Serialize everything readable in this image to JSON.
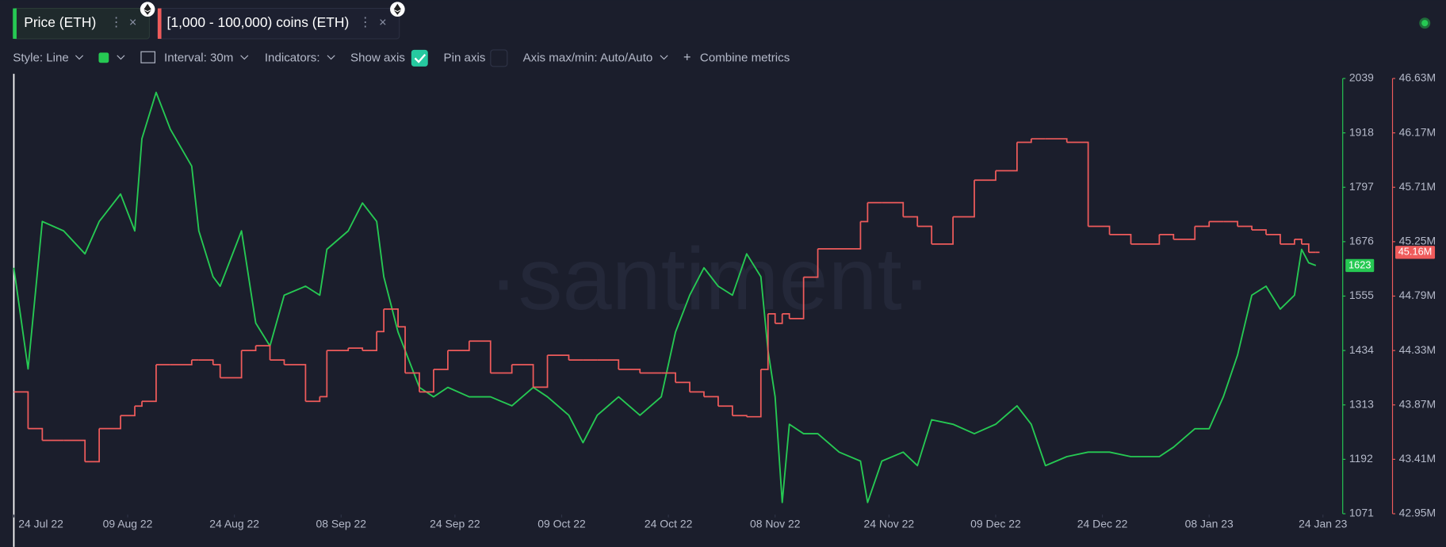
{
  "toolbar": {
    "style": "Style: Line",
    "interval": "Interval: 30m",
    "indicators": "Indicators:",
    "show_axis": "Show axis",
    "pin_axis": "Pin axis",
    "axis_minmax": "Axis max/min: Auto/Auto",
    "combine": "Combine metrics"
  },
  "watermark": "·santiment·",
  "chart_data": {
    "type": "line",
    "x": [
      "2022-07-24",
      "2022-07-26",
      "2022-07-28",
      "2022-07-31",
      "2022-08-03",
      "2022-08-05",
      "2022-08-08",
      "2022-08-10",
      "2022-08-11",
      "2022-08-13",
      "2022-08-15",
      "2022-08-18",
      "2022-08-19",
      "2022-08-21",
      "2022-08-22",
      "2022-08-25",
      "2022-08-27",
      "2022-08-29",
      "2022-08-31",
      "2022-09-03",
      "2022-09-05",
      "2022-09-06",
      "2022-09-09",
      "2022-09-11",
      "2022-09-13",
      "2022-09-14",
      "2022-09-16",
      "2022-09-17",
      "2022-09-19",
      "2022-09-21",
      "2022-09-23",
      "2022-09-26",
      "2022-09-29",
      "2022-10-02",
      "2022-10-05",
      "2022-10-07",
      "2022-10-10",
      "2022-10-12",
      "2022-10-14",
      "2022-10-17",
      "2022-10-20",
      "2022-10-23",
      "2022-10-25",
      "2022-10-27",
      "2022-10-29",
      "2022-10-31",
      "2022-11-02",
      "2022-11-04",
      "2022-11-06",
      "2022-11-07",
      "2022-11-08",
      "2022-11-09",
      "2022-11-10",
      "2022-11-12",
      "2022-11-14",
      "2022-11-17",
      "2022-11-20",
      "2022-11-21",
      "2022-11-23",
      "2022-11-26",
      "2022-11-28",
      "2022-11-30",
      "2022-12-03",
      "2022-12-06",
      "2022-12-09",
      "2022-12-12",
      "2022-12-14",
      "2022-12-16",
      "2022-12-19",
      "2022-12-22",
      "2022-12-25",
      "2022-12-28",
      "2023-01-01",
      "2023-01-03",
      "2023-01-06",
      "2023-01-08",
      "2023-01-10",
      "2023-01-12",
      "2023-01-14",
      "2023-01-16",
      "2023-01-18",
      "2023-01-20",
      "2023-01-21",
      "2023-01-22",
      "2023-01-23"
    ],
    "series": [
      {
        "name": "Price (ETH)",
        "color": "#26c953",
        "axis": "y",
        "step": false,
        "current": 1623,
        "values": [
          1618,
          1393,
          1721,
          1700,
          1649,
          1721,
          1782,
          1700,
          1905,
          2008,
          1926,
          1844,
          1700,
          1598,
          1577,
          1700,
          1495,
          1444,
          1557,
          1577,
          1557,
          1659,
          1700,
          1762,
          1721,
          1598,
          1475,
          1434,
          1352,
          1331,
          1352,
          1331,
          1331,
          1311,
          1352,
          1331,
          1290,
          1229,
          1290,
          1331,
          1290,
          1331,
          1475,
          1557,
          1618,
          1577,
          1557,
          1649,
          1598,
          1434,
          1331,
          1096,
          1270,
          1249,
          1249,
          1208,
          1188,
          1096,
          1188,
          1208,
          1178,
          1280,
          1270,
          1249,
          1270,
          1311,
          1270,
          1178,
          1198,
          1208,
          1208,
          1198,
          1198,
          1219,
          1260,
          1260,
          1331,
          1424,
          1557,
          1577,
          1526,
          1557,
          1659,
          1629,
          1623
        ]
      },
      {
        "name": "[1,000 - 100,000) coins (ETH)",
        "color": "#ef5b5b",
        "axis": "y2",
        "step": true,
        "current": {
          "value": 45.16,
          "label": "45.16M"
        },
        "values": [
          43.98,
          43.67,
          43.57,
          43.57,
          43.39,
          43.67,
          43.78,
          43.86,
          43.9,
          44.21,
          44.21,
          44.25,
          44.25,
          44.21,
          44.1,
          44.33,
          44.37,
          44.25,
          44.21,
          43.9,
          43.94,
          44.33,
          44.35,
          44.33,
          44.49,
          44.68,
          44.53,
          44.14,
          43.98,
          44.17,
          44.33,
          44.41,
          44.14,
          44.21,
          44.02,
          44.29,
          44.25,
          44.25,
          44.25,
          44.17,
          44.14,
          44.14,
          44.06,
          43.98,
          43.94,
          43.86,
          43.78,
          43.77,
          44.17,
          44.64,
          44.56,
          44.64,
          44.6,
          44.95,
          45.19,
          45.19,
          45.42,
          45.58,
          45.58,
          45.46,
          45.38,
          45.23,
          45.46,
          45.77,
          45.85,
          46.09,
          46.12,
          46.12,
          46.09,
          45.38,
          45.31,
          45.23,
          45.31,
          45.27,
          45.38,
          45.42,
          45.42,
          45.38,
          45.35,
          45.31,
          45.23,
          45.27,
          45.23,
          45.16,
          45.16
        ]
      }
    ],
    "xlim": [
      "2022-07-24",
      "2023-01-26"
    ],
    "xticks": [
      {
        "value": "2022-07-24",
        "label": "24 Jul 22"
      },
      {
        "value": "2022-08-09",
        "label": "09 Aug 22"
      },
      {
        "value": "2022-08-24",
        "label": "24 Aug 22"
      },
      {
        "value": "2022-09-08",
        "label": "08 Sep 22"
      },
      {
        "value": "2022-09-24",
        "label": "24 Sep 22"
      },
      {
        "value": "2022-10-09",
        "label": "09 Oct 22"
      },
      {
        "value": "2022-10-24",
        "label": "24 Oct 22"
      },
      {
        "value": "2022-11-08",
        "label": "08 Nov 22"
      },
      {
        "value": "2022-11-24",
        "label": "24 Nov 22"
      },
      {
        "value": "2022-12-09",
        "label": "09 Dec 22"
      },
      {
        "value": "2022-12-24",
        "label": "24 Dec 22"
      },
      {
        "value": "2023-01-08",
        "label": "08 Jan 23"
      },
      {
        "value": "2023-01-24",
        "label": "24 Jan 23"
      }
    ],
    "ylim": [
      1071,
      2039
    ],
    "yticks": [
      1071,
      1192,
      1313,
      1434,
      1555,
      1676,
      1797,
      1918,
      2039
    ],
    "y2lim": [
      42.95,
      46.63
    ],
    "y2ticks": [
      {
        "value": 42.95,
        "label": "42.95M"
      },
      {
        "value": 43.41,
        "label": "43.41M"
      },
      {
        "value": 43.87,
        "label": "43.87M"
      },
      {
        "value": 44.33,
        "label": "44.33M"
      },
      {
        "value": 44.79,
        "label": "44.79M"
      },
      {
        "value": 45.25,
        "label": "45.25M"
      },
      {
        "value": 45.71,
        "label": "45.71M"
      },
      {
        "value": 46.17,
        "label": "46.17M"
      },
      {
        "value": 46.63,
        "label": "46.63M"
      }
    ]
  }
}
